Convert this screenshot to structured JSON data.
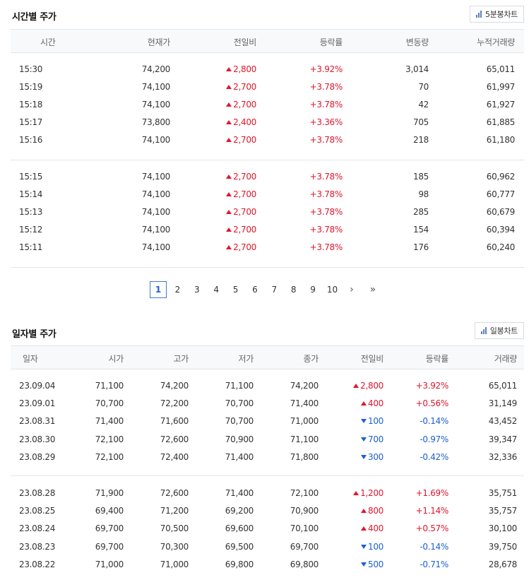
{
  "time_section": {
    "title": "시간별 주가",
    "chart_button": "5분봉차트",
    "columns": [
      "시간",
      "현재가",
      "전일비",
      "등락률",
      "변동량",
      "누적거래량"
    ],
    "rows": [
      {
        "time": "15:30",
        "price": "74,200",
        "diff": "2,800",
        "dir": "up",
        "rate": "+3.92%",
        "vol": "3,014",
        "cum": "65,011"
      },
      {
        "time": "15:19",
        "price": "74,100",
        "diff": "2,700",
        "dir": "up",
        "rate": "+3.78%",
        "vol": "70",
        "cum": "61,997"
      },
      {
        "time": "15:18",
        "price": "74,100",
        "diff": "2,700",
        "dir": "up",
        "rate": "+3.78%",
        "vol": "42",
        "cum": "61,927"
      },
      {
        "time": "15:17",
        "price": "73,800",
        "diff": "2,400",
        "dir": "up",
        "rate": "+3.36%",
        "vol": "705",
        "cum": "61,885"
      },
      {
        "time": "15:16",
        "price": "74,100",
        "diff": "2,700",
        "dir": "up",
        "rate": "+3.78%",
        "vol": "218",
        "cum": "61,180"
      },
      {
        "time": "15:15",
        "price": "74,100",
        "diff": "2,700",
        "dir": "up",
        "rate": "+3.78%",
        "vol": "185",
        "cum": "60,962"
      },
      {
        "time": "15:14",
        "price": "74,100",
        "diff": "2,700",
        "dir": "up",
        "rate": "+3.78%",
        "vol": "98",
        "cum": "60,777"
      },
      {
        "time": "15:13",
        "price": "74,100",
        "diff": "2,700",
        "dir": "up",
        "rate": "+3.78%",
        "vol": "285",
        "cum": "60,679"
      },
      {
        "time": "15:12",
        "price": "74,100",
        "diff": "2,700",
        "dir": "up",
        "rate": "+3.78%",
        "vol": "154",
        "cum": "60,394"
      },
      {
        "time": "15:11",
        "price": "74,100",
        "diff": "2,700",
        "dir": "up",
        "rate": "+3.78%",
        "vol": "176",
        "cum": "60,240"
      }
    ]
  },
  "pagination": {
    "current": "1",
    "pages": [
      "1",
      "2",
      "3",
      "4",
      "5",
      "6",
      "7",
      "8",
      "9",
      "10"
    ],
    "next_icon": "chevron-right-icon",
    "last_icon": "double-chevron-right-icon"
  },
  "daily_section": {
    "title": "일자별 주가",
    "chart_button": "일봉차트",
    "columns": [
      "일자",
      "시가",
      "고가",
      "저가",
      "종가",
      "전일비",
      "등락률",
      "거래량"
    ],
    "rows": [
      {
        "date": "23.09.04",
        "open": "71,100",
        "high": "74,200",
        "low": "71,100",
        "close": "74,200",
        "diff": "2,800",
        "dir": "up",
        "rate": "+3.92%",
        "vol": "65,011"
      },
      {
        "date": "23.09.01",
        "open": "70,700",
        "high": "72,200",
        "low": "70,700",
        "close": "71,400",
        "diff": "400",
        "dir": "up",
        "rate": "+0.56%",
        "vol": "31,149"
      },
      {
        "date": "23.08.31",
        "open": "71,400",
        "high": "71,600",
        "low": "70,700",
        "close": "71,000",
        "diff": "100",
        "dir": "down",
        "rate": "-0.14%",
        "vol": "43,452"
      },
      {
        "date": "23.08.30",
        "open": "72,100",
        "high": "72,600",
        "low": "70,900",
        "close": "71,100",
        "diff": "700",
        "dir": "down",
        "rate": "-0.97%",
        "vol": "39,347"
      },
      {
        "date": "23.08.29",
        "open": "72,100",
        "high": "72,400",
        "low": "71,400",
        "close": "71,800",
        "diff": "300",
        "dir": "down",
        "rate": "-0.42%",
        "vol": "32,336"
      },
      {
        "date": "23.08.28",
        "open": "71,900",
        "high": "72,600",
        "low": "71,400",
        "close": "72,100",
        "diff": "1,200",
        "dir": "up",
        "rate": "+1.69%",
        "vol": "35,751"
      },
      {
        "date": "23.08.25",
        "open": "69,400",
        "high": "71,200",
        "low": "69,200",
        "close": "70,900",
        "diff": "800",
        "dir": "up",
        "rate": "+1.14%",
        "vol": "35,757"
      },
      {
        "date": "23.08.24",
        "open": "69,700",
        "high": "70,500",
        "low": "69,600",
        "close": "70,100",
        "diff": "400",
        "dir": "up",
        "rate": "+0.57%",
        "vol": "30,100"
      },
      {
        "date": "23.08.23",
        "open": "69,700",
        "high": "70,300",
        "low": "69,500",
        "close": "69,700",
        "diff": "100",
        "dir": "down",
        "rate": "-0.14%",
        "vol": "39,750"
      },
      {
        "date": "23.08.22",
        "open": "71,000",
        "high": "71,000",
        "low": "69,800",
        "close": "69,800",
        "diff": "500",
        "dir": "down",
        "rate": "-0.71%",
        "vol": "28,678"
      }
    ]
  },
  "colors": {
    "up": "#e0162b",
    "down": "#1c5fd1",
    "accent": "#3b7ddd"
  }
}
